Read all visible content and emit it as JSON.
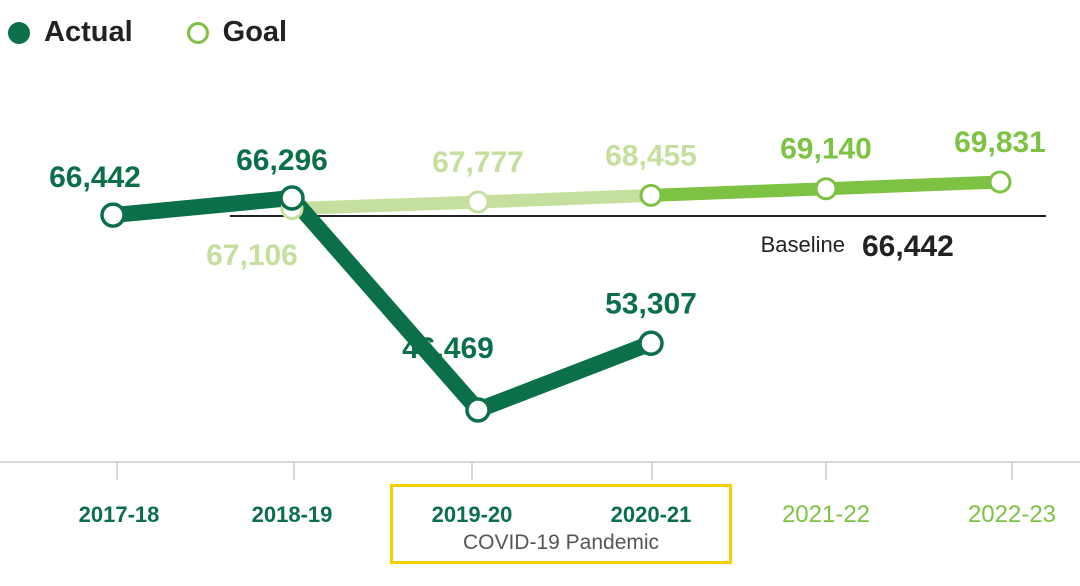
{
  "chart_data": {
    "type": "line",
    "categories": [
      "2017-18",
      "2018-19",
      "2019-20",
      "2020-21",
      "2021-22",
      "2022-23"
    ],
    "series": [
      {
        "name": "Actual",
        "color": "#0b704a",
        "values": [
          66442,
          66296,
          46469,
          53307,
          null,
          null
        ]
      },
      {
        "name": "Goal",
        "color": "#7dc242",
        "light_color": "#c5e09e",
        "values": [
          null,
          67106,
          67777,
          68455,
          69140,
          69831
        ]
      }
    ],
    "data_labels": {
      "actual": [
        "66,442",
        "66,296",
        "46,469",
        "53,307"
      ],
      "goal": [
        "67,106",
        "67,777",
        "68,455",
        "69,140",
        "69,831"
      ]
    },
    "baseline": {
      "label": "Baseline",
      "value_label": "66,442",
      "value": 66442
    },
    "annotation": "COVID-19 Pandemic",
    "legend": {
      "position": "top-left",
      "items": [
        "Actual",
        "Goal"
      ]
    },
    "ylim": [
      44000,
      71000
    ],
    "grid": false
  }
}
